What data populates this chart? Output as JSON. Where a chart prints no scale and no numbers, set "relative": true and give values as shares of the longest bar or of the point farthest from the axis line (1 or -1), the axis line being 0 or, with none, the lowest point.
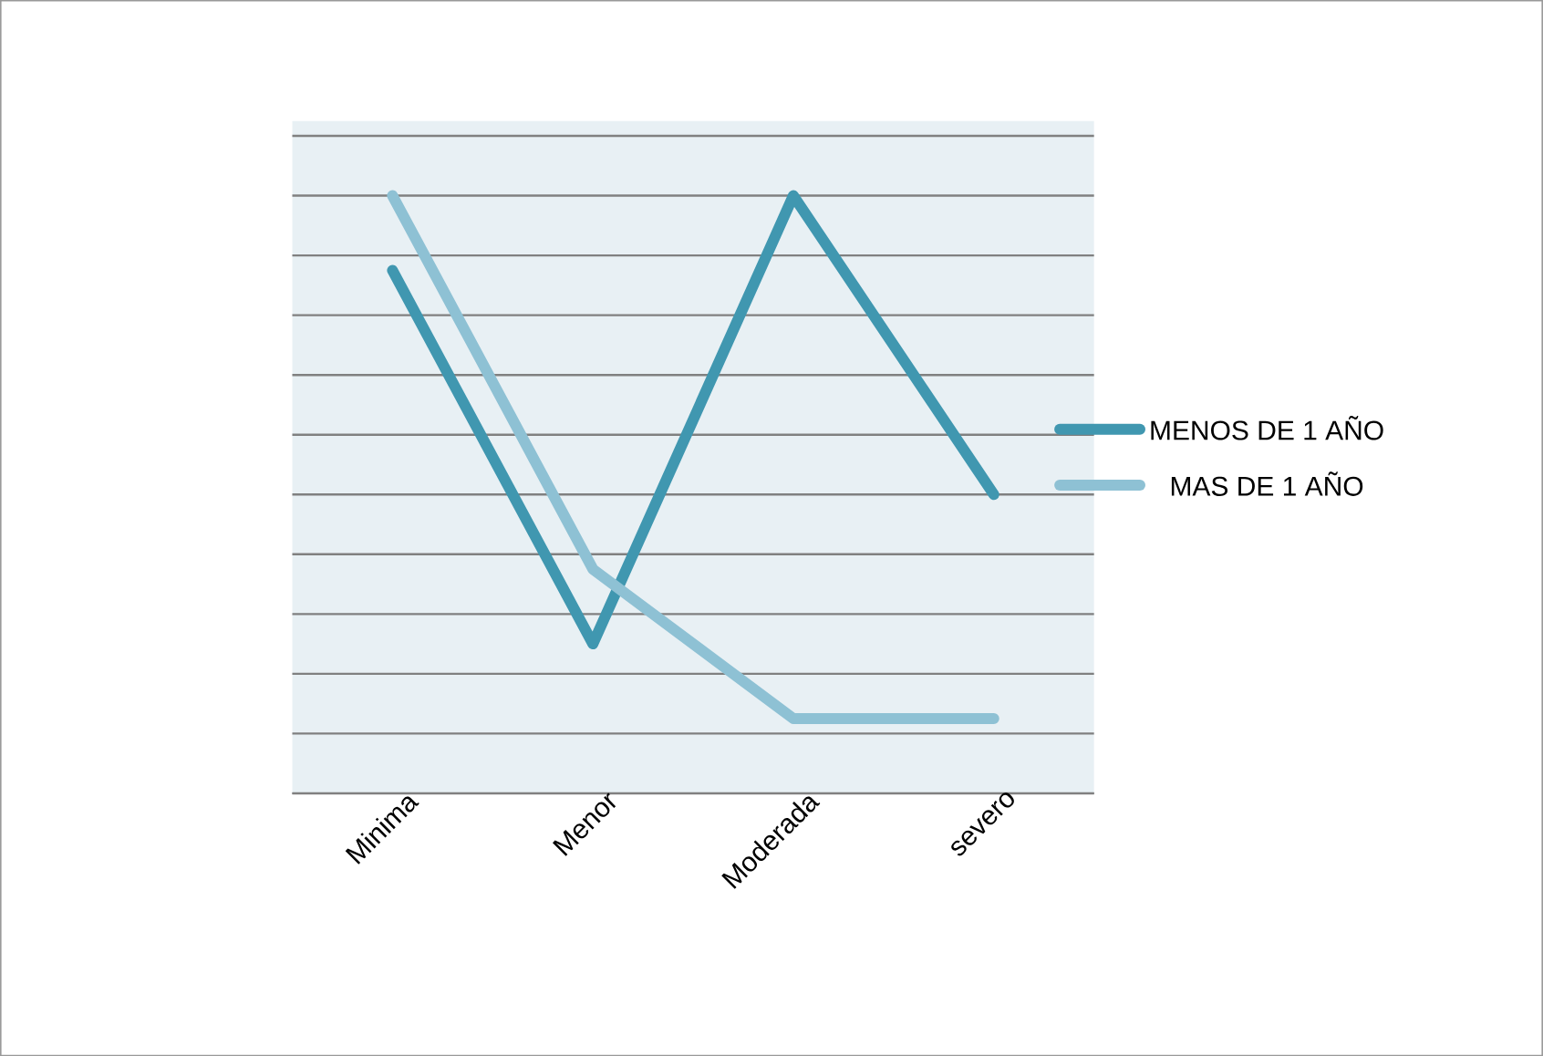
{
  "chart_data": {
    "type": "line",
    "relative": true,
    "categories": [
      "Minima",
      "Menor",
      "Moderada",
      "severo"
    ],
    "series": [
      {
        "name": "MENOS DE 1 AÑO",
        "color": "#4097b0",
        "values": [
          0.875,
          0.25,
          1,
          0.5
        ]
      },
      {
        "name": "MAS DE 1 AÑO",
        "color": "#8ec1d4",
        "values": [
          1,
          0.375,
          0.125,
          0.125
        ]
      }
    ],
    "grid": "y",
    "legend": "right",
    "marker": "none",
    "line_style": "solid"
  }
}
